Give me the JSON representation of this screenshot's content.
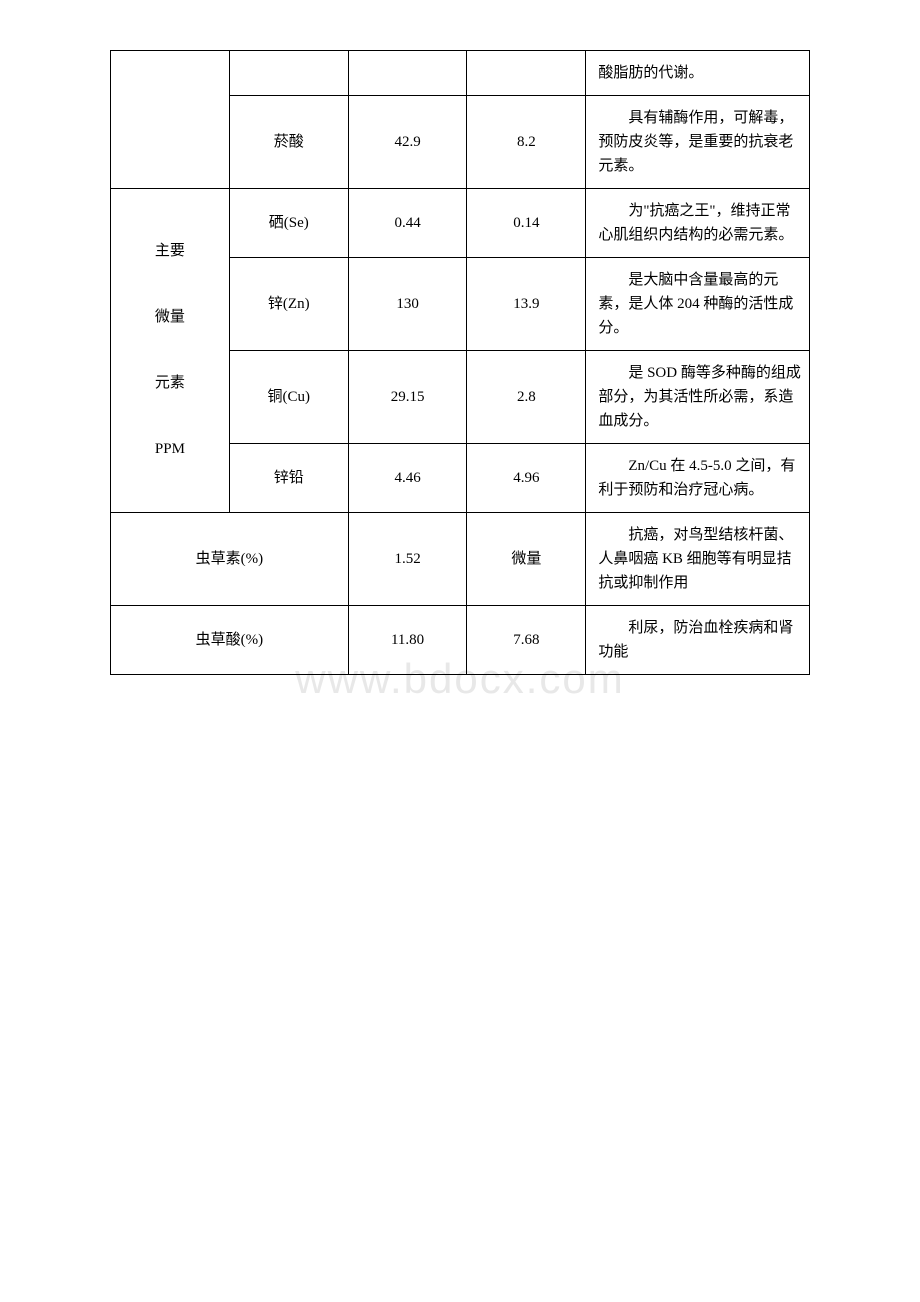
{
  "watermark": "www.bdocx.com",
  "table": {
    "rows": [
      {
        "category": "",
        "name": "",
        "val1": "",
        "val2": "",
        "desc": "酸脂肪的代谢。",
        "hasCategory": true,
        "categoryRowspan": 2,
        "firstRowPartial": true
      },
      {
        "name": "菸酸",
        "val1": "42.9",
        "val2": "8.2",
        "desc": "具有辅酶作用，可解毒，预防皮炎等，是重要的抗衰老元素。"
      },
      {
        "category": "主要\n微量\n元素\nPPM",
        "name": "硒(Se)",
        "val1": "0.44",
        "val2": "0.14",
        "desc": "为\"抗癌之王\"，维持正常心肌组织内结构的必需元素。",
        "hasCategory": true,
        "categoryRowspan": 4
      },
      {
        "name": "锌(Zn)",
        "val1": "130",
        "val2": "13.9",
        "desc": "是大脑中含量最高的元素，是人体 204 种酶的活性成分。"
      },
      {
        "name": "铜(Cu)",
        "val1": "29.15",
        "val2": "2.8",
        "desc": "是 SOD 酶等多种酶的组成部分，为其活性所必需，系造血成分。"
      },
      {
        "name": "锌铅",
        "val1": "4.46",
        "val2": "4.96",
        "desc": "Zn/Cu 在 4.5-5.0 之间，有利于预防和治疗冠心病。"
      },
      {
        "mergedName": "虫草素(%)",
        "val1": "1.52",
        "val2": "微量",
        "desc": "抗癌，对鸟型结核杆菌、人鼻咽癌 KB 细胞等有明显拮抗或抑制作用",
        "merged": true
      },
      {
        "mergedName": "虫草酸(%)",
        "val1": "11.80",
        "val2": "7.68",
        "desc": "利尿，防治血栓疾病和肾功能",
        "merged": true
      }
    ]
  },
  "categoryLines": [
    "主要",
    "微量",
    "元素",
    "PPM"
  ]
}
